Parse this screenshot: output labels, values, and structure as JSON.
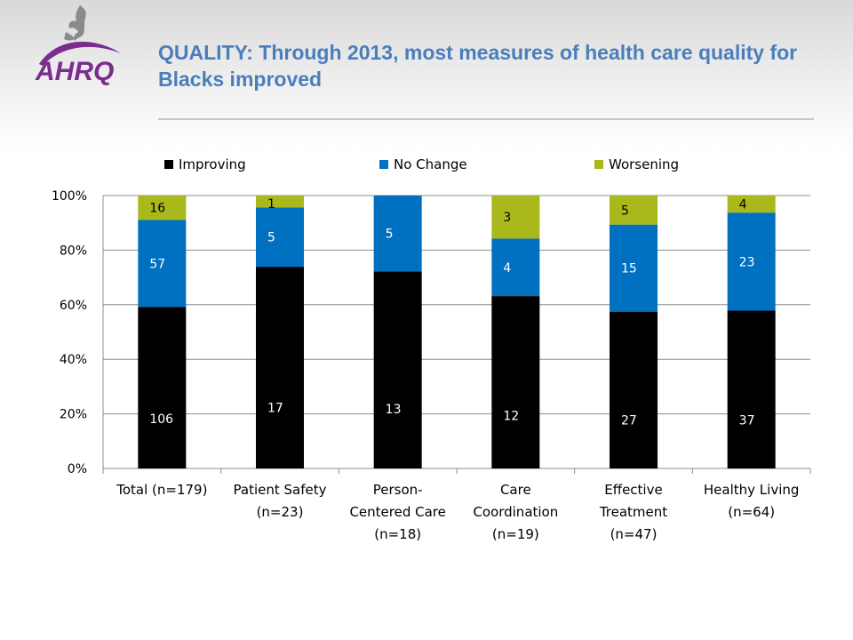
{
  "header": {
    "title": "QUALITY: Through 2013, most measures of health care quality for Blacks improved",
    "logo_text": "AHRQ"
  },
  "colors": {
    "improving": "#000000",
    "no_change": "#0070c0",
    "worsening": "#a9b81b",
    "title": "#4a7ebb",
    "logo": "#7b2c8c"
  },
  "chart_data": {
    "type": "bar",
    "stacked": true,
    "normalized": true,
    "title": "",
    "xlabel": "",
    "ylabel": "",
    "ylim": [
      0,
      100
    ],
    "yticks": [
      "0%",
      "20%",
      "40%",
      "60%",
      "80%",
      "100%"
    ],
    "grid": true,
    "legend": "top",
    "categories": [
      [
        "Total (n=179)"
      ],
      [
        "Patient Safety",
        "(n=23)"
      ],
      [
        "Person-",
        "Centered Care",
        "(n=18)"
      ],
      [
        "Care",
        "Coordination",
        "(n=19)"
      ],
      [
        "Effective",
        "Treatment",
        "(n=47)"
      ],
      [
        "Healthy Living",
        "(n=64)"
      ]
    ],
    "series": [
      {
        "name": "Improving",
        "color": "#000000",
        "label_color": "#ffffff",
        "values": [
          106,
          17,
          13,
          12,
          27,
          37
        ]
      },
      {
        "name": "No Change",
        "color": "#0070c0",
        "label_color": "#ffffff",
        "values": [
          57,
          5,
          5,
          4,
          15,
          23
        ]
      },
      {
        "name": "Worsening",
        "color": "#a9b81b",
        "label_color": "#000000",
        "values": [
          16,
          1,
          0,
          3,
          5,
          4
        ]
      }
    ]
  }
}
